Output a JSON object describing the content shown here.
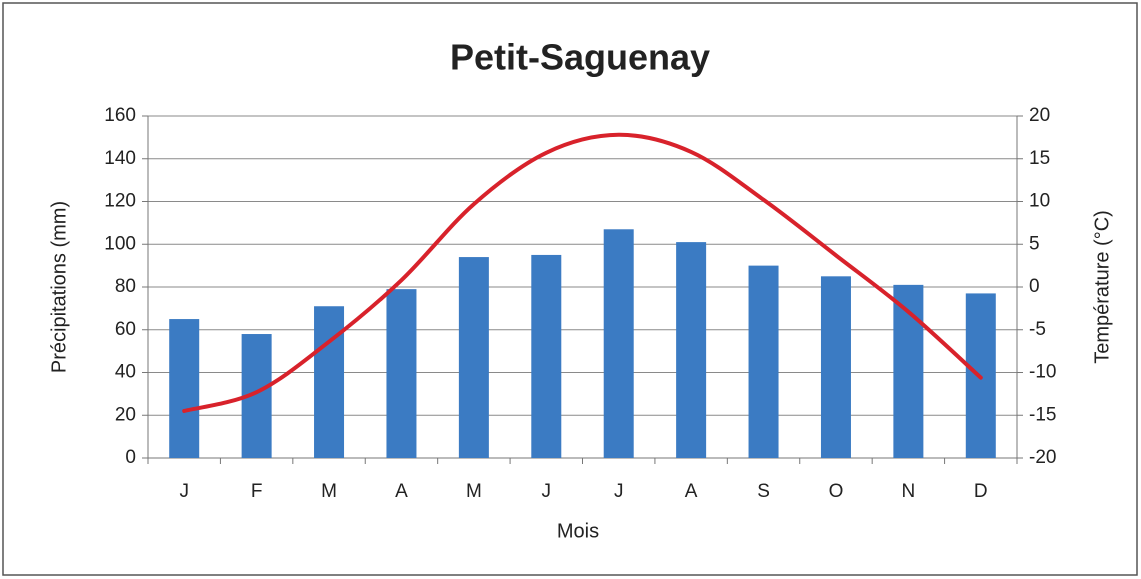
{
  "chart_data": {
    "type": "bar-line",
    "title": "Petit-Saguenay",
    "x_label": "Mois",
    "y_label": "Précipitations (mm)",
    "y2_label": "Température (°C)",
    "categories": [
      "J",
      "F",
      "M",
      "A",
      "M",
      "J",
      "J",
      "A",
      "S",
      "O",
      "N",
      "D"
    ],
    "series": [
      {
        "name": "Précipitations",
        "type": "bar",
        "color": "#3b7bc3",
        "values": [
          65,
          58,
          71,
          79,
          94,
          95,
          107,
          101,
          90,
          85,
          81,
          77
        ]
      },
      {
        "name": "Température",
        "type": "line",
        "axis": "y2",
        "color": "#d8222b",
        "values": [
          -14.5,
          -12.3,
          -6.4,
          0.8,
          9.7,
          15.7,
          17.8,
          15.8,
          10.2,
          3.7,
          -2.9,
          -10.6
        ]
      }
    ],
    "ylim": [
      0,
      160
    ],
    "yticks": [
      0,
      20,
      40,
      60,
      80,
      100,
      120,
      140,
      160
    ],
    "y2lim": [
      -20,
      20
    ],
    "y2ticks": [
      -20,
      -15,
      -10,
      -5,
      0,
      5,
      10,
      15,
      20
    ],
    "grid": true
  }
}
